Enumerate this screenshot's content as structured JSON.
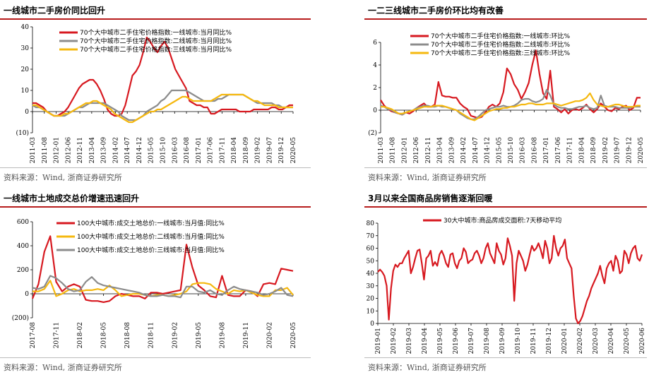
{
  "panels": [
    {
      "title": "一线城市二手房价同比回升",
      "source": "资料来源：Wind, 浙商证券研究所",
      "chart_data": {
        "type": "line",
        "ylim": [
          -10,
          40
        ],
        "yticks": [
          -10,
          0,
          10,
          20,
          30,
          40
        ],
        "ytick_labels": [
          "(10)",
          "0",
          "10",
          "20",
          "30",
          "40"
        ],
        "xlabels": [
          "2011-03",
          "2011-08",
          "2012-01",
          "2012-06",
          "2012-11",
          "2013-04",
          "2013-09",
          "2014-02",
          "2014-07",
          "2014-12",
          "2015-05",
          "2015-10",
          "2016-03",
          "2016-08",
          "2017-01",
          "2017-06",
          "2017-11",
          "2018-04",
          "2018-09",
          "2019-02",
          "2019-07",
          "2019-12",
          "2020-05"
        ],
        "series": [
          {
            "name": "70个大中城市二手住宅价格指数:一线城市:当月同比%",
            "color": "#d71920",
            "values": [
              4,
              4,
              3,
              2,
              0,
              -1,
              -2,
              -2,
              -1,
              0,
              2,
              5,
              8,
              11,
              13,
              14,
              15,
              15,
              13,
              10,
              6,
              1,
              -1,
              -2,
              -2,
              -1,
              3,
              10,
              17,
              19,
              22,
              28,
              35,
              33,
              30,
              28,
              31,
              33,
              30,
              25,
              20,
              17,
              14,
              11,
              5,
              4,
              3,
              3,
              2,
              2,
              -1,
              -1,
              0,
              1,
              1,
              1,
              1,
              1,
              0,
              0,
              0,
              0,
              1,
              1,
              1,
              1,
              1,
              2,
              2,
              1,
              1,
              2,
              3,
              3
            ]
          },
          {
            "name": "70个大中城市二手住宅价格指数:二线城市:当月同比%",
            "color": "#8c8c8c",
            "values": [
              3,
              2,
              2,
              1,
              0,
              -1,
              -2,
              -2,
              -2,
              -2,
              -1,
              0,
              1,
              2,
              2,
              3,
              4,
              4,
              4,
              4,
              4,
              3,
              2,
              1,
              0,
              -2,
              -3,
              -4,
              -4,
              -4,
              -3,
              -2,
              0,
              1,
              2,
              3,
              5,
              6,
              8,
              10,
              10,
              10,
              10,
              10,
              9,
              8,
              7,
              6,
              5,
              5,
              5,
              5,
              6,
              6,
              7,
              8,
              8,
              8,
              8,
              8,
              7,
              6,
              5,
              4,
              4,
              4,
              4,
              4,
              3,
              3,
              2,
              2,
              2,
              2
            ]
          },
          {
            "name": "70个大中城市二手住宅价格指数:三线城市:当月同比%",
            "color": "#f5b80f",
            "values": [
              3,
              3,
              2,
              1,
              0,
              -1,
              -2,
              -2,
              -2,
              -1,
              -1,
              0,
              1,
              2,
              3,
              4,
              4,
              5,
              5,
              4,
              3,
              2,
              1,
              -1,
              -2,
              -3,
              -4,
              -5,
              -5,
              -4,
              -3,
              -2,
              -1,
              0,
              0,
              1,
              1,
              2,
              3,
              4,
              5,
              6,
              7,
              7,
              6,
              5,
              5,
              5,
              5,
              5,
              5,
              6,
              7,
              8,
              8,
              8,
              8,
              8,
              8,
              8,
              7,
              6,
              5,
              5,
              4,
              3,
              3,
              3,
              3,
              2,
              2,
              2,
              2,
              2
            ]
          }
        ]
      }
    },
    {
      "title": "一二三线城市二手房价环比均有改善",
      "source": "资料来源：Wind, 浙商证券研究所",
      "chart_data": {
        "type": "line",
        "ylim": [
          -2,
          6
        ],
        "yticks": [
          -2,
          0,
          2,
          4,
          6
        ],
        "ytick_labels": [
          "(2)",
          "0",
          "2",
          "4",
          "6"
        ],
        "xlabels": [
          "2011-03",
          "2011-08",
          "2012-01",
          "2012-06",
          "2012-11",
          "2013-04",
          "2013-09",
          "2014-02",
          "2014-07",
          "2014-12",
          "2015-05",
          "2015-10",
          "2016-03",
          "2016-08",
          "2017-01",
          "2017-06",
          "2017-11",
          "2018-04",
          "2018-09",
          "2019-02",
          "2019-07",
          "2019-12",
          "2020-05"
        ],
        "series": [
          {
            "name": "70个大中城市二手住宅价格指数:一线城市:环比%",
            "color": "#d71920",
            "values": [
              0.9,
              0.4,
              0.1,
              -0.1,
              -0.2,
              -0.3,
              -0.4,
              -0.2,
              -0.3,
              -0.1,
              0.2,
              0.4,
              0.6,
              0.3,
              0.3,
              0.5,
              2.5,
              1.3,
              1.2,
              1.2,
              1.1,
              1.1,
              0.6,
              0.3,
              0.1,
              -0.5,
              -0.6,
              -0.7,
              -0.6,
              -0.2,
              0.3,
              0.5,
              0.3,
              0.6,
              1.6,
              3.7,
              3.2,
              2.3,
              1.8,
              1.0,
              1.6,
              2.4,
              4.0,
              5.3,
              3.2,
              1.5,
              1.0,
              3.5,
              0.3,
              0.1,
              -0.2,
              0.1,
              -0.3,
              0.0,
              0.1,
              0.0,
              0.2,
              0.5,
              0.1,
              -0.2,
              0.1,
              0.6,
              0.3,
              0.0,
              -0.1,
              0.2,
              0.1,
              0.3,
              0.4,
              0.0,
              0.2,
              1.1,
              1.1
            ]
          },
          {
            "name": "70个大中城市二手住宅价格指数:二线城市:环比%",
            "color": "#8c8c8c",
            "values": [
              0.4,
              0.3,
              0.1,
              0.0,
              -0.2,
              -0.3,
              -0.4,
              -0.2,
              -0.1,
              0.0,
              0.2,
              0.3,
              0.4,
              0.4,
              0.3,
              0.3,
              0.4,
              0.3,
              0.3,
              0.2,
              0.1,
              0.0,
              -0.3,
              -0.5,
              -0.7,
              -0.8,
              -0.8,
              -0.6,
              -0.3,
              0.0,
              0.1,
              0.2,
              0.3,
              0.3,
              0.4,
              0.3,
              0.3,
              0.4,
              0.6,
              0.9,
              1.0,
              1.0,
              0.8,
              0.7,
              0.8,
              1.0,
              1.8,
              1.3,
              0.5,
              0.3,
              0.2,
              0.2,
              0.1,
              0.1,
              0.2,
              0.3,
              0.3,
              0.4,
              0.2,
              0.1,
              0.2,
              1.3,
              0.4,
              0.3,
              0.3,
              0.3,
              0.2,
              0.2,
              0.2,
              0.2,
              0.3,
              0.3,
              0.3
            ]
          },
          {
            "name": "70个大中城市二手住宅价格指数:三线城市:环比%",
            "color": "#f5b80f",
            "values": [
              0.3,
              0.3,
              0.2,
              0.1,
              -0.1,
              -0.3,
              -0.3,
              -0.2,
              -0.1,
              0.0,
              0.1,
              0.2,
              0.3,
              0.3,
              0.3,
              0.4,
              0.4,
              0.4,
              0.3,
              0.2,
              0.1,
              0.0,
              -0.2,
              -0.4,
              -0.6,
              -0.8,
              -0.9,
              -0.7,
              -0.5,
              -0.3,
              -0.1,
              0.0,
              0.1,
              0.1,
              0.2,
              0.2,
              0.3,
              0.3,
              0.4,
              0.5,
              0.5,
              0.6,
              0.6,
              0.5,
              0.5,
              0.5,
              0.6,
              0.6,
              0.6,
              0.5,
              0.4,
              0.5,
              0.6,
              0.7,
              0.8,
              0.8,
              0.9,
              1.1,
              1.5,
              0.9,
              0.5,
              0.4,
              0.3,
              0.3,
              0.4,
              0.5,
              0.5,
              0.4,
              0.3,
              0.3,
              0.3,
              0.4,
              0.4
            ]
          }
        ]
      }
    },
    {
      "title": "一线城市土地成交总价增速迅速回升",
      "source": "资料来源：Wind, 浙商证券研究所",
      "chart_data": {
        "type": "line",
        "ylim": [
          -200,
          600
        ],
        "yticks": [
          -200,
          0,
          200,
          400,
          600
        ],
        "ytick_labels": [
          "(200)",
          "0",
          "200",
          "400",
          "600"
        ],
        "xlabels": [
          "2017-08",
          "2017-11",
          "2018-02",
          "2018-05",
          "2018-08",
          "2018-11",
          "2019-02",
          "2019-05",
          "2019-08",
          "2019-11",
          "2020-02",
          "2020-05"
        ],
        "series": [
          {
            "name": "100大中城市:成交土地总价:一线城市:当月值:同比%",
            "color": "#d71920",
            "values": [
              -40,
              80,
              350,
              480,
              100,
              20,
              60,
              80,
              60,
              -50,
              -60,
              -60,
              -70,
              -60,
              -20,
              0,
              -10,
              -20,
              -20,
              -40,
              10,
              10,
              0,
              10,
              20,
              30,
              410,
              220,
              70,
              30,
              -20,
              -30,
              150,
              -10,
              -20,
              -20,
              30,
              20,
              -20,
              80,
              90,
              80,
              210,
              200,
              190
            ]
          },
          {
            "name": "100大中城市:成交土地总价:二线城市:当月值:同比%",
            "color": "#f5b80f",
            "values": [
              20,
              20,
              40,
              110,
              -20,
              0,
              30,
              40,
              20,
              30,
              30,
              40,
              30,
              70,
              30,
              -20,
              -10,
              0,
              0,
              -10,
              -20,
              -10,
              -10,
              -20,
              -10,
              0,
              20,
              80,
              90,
              90,
              80,
              40,
              20,
              0,
              30,
              20,
              30,
              10,
              -10,
              -20,
              -20,
              30,
              30,
              50,
              -10
            ]
          },
          {
            "name": "100大中城市:成交土地总价:三线城市:当月值:同比%",
            "color": "#8c8c8c",
            "values": [
              50,
              40,
              60,
              150,
              130,
              90,
              40,
              20,
              30,
              100,
              140,
              90,
              70,
              60,
              50,
              40,
              30,
              20,
              10,
              -10,
              -20,
              -20,
              -10,
              -20,
              -20,
              -30,
              60,
              60,
              20,
              10,
              30,
              0,
              -10,
              30,
              60,
              40,
              30,
              20,
              10,
              -10,
              0,
              20,
              50,
              -10,
              -20
            ]
          }
        ]
      }
    },
    {
      "title": "3月以来全国商品房销售逐渐回暖",
      "source": "资料来源：Wind, 浙商证券研究所",
      "chart_data": {
        "type": "line",
        "ylim": [
          0,
          80
        ],
        "yticks": [
          0,
          10,
          20,
          30,
          40,
          50,
          60,
          70,
          80
        ],
        "ytick_labels": [
          "0",
          "10",
          "20",
          "30",
          "40",
          "50",
          "60",
          "70",
          "80"
        ],
        "xlabels": [
          "2019-01",
          "2019-02",
          "2019-03",
          "2019-04",
          "2019-05",
          "2019-06",
          "2019-07",
          "2019-08",
          "2019-09",
          "2019-10",
          "2019-11",
          "2019-12",
          "2020-01",
          "2020-02",
          "2020-03",
          "2020-04",
          "2020-05",
          "2020-06"
        ],
        "series": [
          {
            "name": "30大中城市:商品房成交面积:7天移动平均",
            "color": "#d71920",
            "values": [
              41,
              43,
              41,
              38,
              30,
              3,
              28,
              42,
              47,
              45,
              48,
              48,
              52,
              55,
              58,
              40,
              45,
              52,
              58,
              59,
              48,
              35,
              52,
              54,
              58,
              46,
              49,
              46,
              55,
              58,
              54,
              48,
              45,
              55,
              56,
              48,
              44,
              50,
              52,
              60,
              57,
              48,
              50,
              51,
              56,
              58,
              54,
              48,
              52,
              60,
              64,
              56,
              52,
              48,
              64,
              58,
              55,
              47,
              52,
              68,
              62,
              54,
              18,
              48,
              58,
              54,
              50,
              42,
              47,
              55,
              62,
              58,
              60,
              64,
              59,
              52,
              66,
              60,
              48,
              52,
              70,
              60,
              54,
              60,
              62,
              67,
              52,
              48,
              44,
              22,
              4,
              0,
              2,
              6,
              12,
              18,
              22,
              28,
              32,
              36,
              40,
              46,
              38,
              32,
              44,
              48,
              50,
              42,
              54,
              50,
              40,
              42,
              58,
              55,
              48,
              56,
              60,
              62,
              52,
              50,
              55
            ]
          }
        ]
      }
    }
  ]
}
